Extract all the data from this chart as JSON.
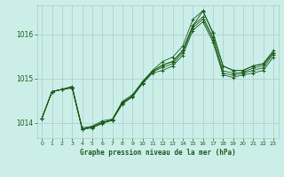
{
  "title": "Graphe pression niveau de la mer (hPa)",
  "background_color": "#cceee8",
  "grid_color": "#aacccc",
  "line_color": "#1a5c1a",
  "xlim": [
    -0.5,
    23.5
  ],
  "ylim": [
    1013.65,
    1016.65
  ],
  "yticks": [
    1014,
    1015,
    1016
  ],
  "xticks": [
    0,
    1,
    2,
    3,
    4,
    5,
    6,
    7,
    8,
    9,
    10,
    11,
    12,
    13,
    14,
    15,
    16,
    17,
    18,
    19,
    20,
    21,
    22,
    23
  ],
  "series": [
    [
      1014.1,
      1014.7,
      1014.75,
      1014.78,
      1013.85,
      1013.88,
      1013.98,
      1014.05,
      1014.42,
      1014.58,
      1014.88,
      1015.12,
      1015.18,
      1015.28,
      1015.52,
      1016.08,
      1016.28,
      1015.82,
      1015.08,
      1015.02,
      1015.08,
      1015.12,
      1015.18,
      1015.48
    ],
    [
      1014.1,
      1014.7,
      1014.75,
      1014.8,
      1013.85,
      1013.9,
      1014.0,
      1014.06,
      1014.44,
      1014.6,
      1014.9,
      1015.15,
      1015.25,
      1015.33,
      1015.58,
      1016.14,
      1016.34,
      1015.88,
      1015.12,
      1015.07,
      1015.12,
      1015.18,
      1015.24,
      1015.54
    ],
    [
      1014.1,
      1014.7,
      1014.75,
      1014.8,
      1013.85,
      1013.9,
      1014.0,
      1014.06,
      1014.45,
      1014.6,
      1014.9,
      1015.16,
      1015.3,
      1015.38,
      1015.63,
      1016.19,
      1016.39,
      1015.93,
      1015.17,
      1015.12,
      1015.14,
      1015.23,
      1015.29,
      1015.58
    ],
    [
      1014.1,
      1014.7,
      1014.75,
      1014.82,
      1013.88,
      1013.92,
      1014.04,
      1014.08,
      1014.48,
      1014.63,
      1014.93,
      1015.18,
      1015.38,
      1015.48,
      1015.73,
      1016.33,
      1016.53,
      1016.03,
      1015.28,
      1015.18,
      1015.18,
      1015.28,
      1015.33,
      1015.63
    ]
  ],
  "main_series": [
    1014.1,
    1014.7,
    1014.75,
    1014.8,
    1013.85,
    1013.9,
    1014.0,
    1014.06,
    1014.45,
    1014.6,
    1014.9,
    1015.16,
    1015.3,
    1015.38,
    1015.63,
    1016.19,
    1016.52,
    1016.03,
    1015.28,
    1015.18,
    1015.18,
    1015.28,
    1015.33,
    1015.58
  ]
}
